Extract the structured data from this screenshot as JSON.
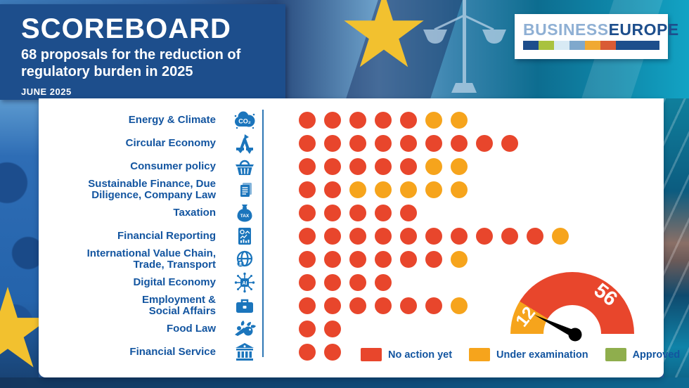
{
  "header": {
    "title": "SCOREBOARD",
    "subtitle": "68 proposals for the reduction of regulatory burden in 2025",
    "date": "JUNE 2025"
  },
  "logo": {
    "part1": "BUSINESS",
    "part2": "EUROPE",
    "bar_colors": [
      "#1d4e8c",
      "#a9c23f",
      "#d8eaf4",
      "#7fa8cc",
      "#f0a932",
      "#d95b35",
      "#1d4e8c"
    ]
  },
  "colors": {
    "no_action": "#e8462c",
    "under_examination": "#f6a41c",
    "approved": "#8fae4d",
    "label_blue": "#1355a0",
    "icon_blue": "#1b75bc",
    "header_blue": "#1d4e8c",
    "divider_blue": "#2e77b5"
  },
  "legend": [
    {
      "label": "No action yet",
      "color": "#e8462c"
    },
    {
      "label": "Under examination",
      "color": "#f6a41c"
    },
    {
      "label": "Approved",
      "color": "#8fae4d"
    }
  ],
  "gauge": {
    "under_examination": "12",
    "no_action": "56",
    "total": 68
  },
  "rows": [
    {
      "label": "Energy & Climate",
      "icon": "co2-cloud",
      "icon_label": "CO₂",
      "no_action": 5,
      "under_examination": 2,
      "approved": 0
    },
    {
      "label": "Circular Economy",
      "icon": "recycle",
      "icon_label": "",
      "no_action": 9,
      "under_examination": 0,
      "approved": 0
    },
    {
      "label": "Consumer policy",
      "icon": "basket",
      "icon_label": "",
      "no_action": 5,
      "under_examination": 2,
      "approved": 0
    },
    {
      "label": "Sustainable Finance, Due\nDiligence, Company Law",
      "icon": "documents",
      "icon_label": "",
      "no_action": 2,
      "under_examination": 5,
      "approved": 0
    },
    {
      "label": "Taxation",
      "icon": "money-bag",
      "icon_label": "TAX",
      "no_action": 5,
      "under_examination": 0,
      "approved": 0
    },
    {
      "label": "Financial Reporting",
      "icon": "report",
      "icon_label": "",
      "no_action": 10,
      "under_examination": 1,
      "approved": 0
    },
    {
      "label": "International Value Chain,\nTrade, Transport",
      "icon": "globe",
      "icon_label": "",
      "no_action": 6,
      "under_examination": 1,
      "approved": 0
    },
    {
      "label": "Digital Economy",
      "icon": "ai-chip",
      "icon_label": "AI",
      "no_action": 4,
      "under_examination": 0,
      "approved": 0
    },
    {
      "label": "Employment &\nSocial Affairs",
      "icon": "briefcase",
      "icon_label": "",
      "no_action": 6,
      "under_examination": 1,
      "approved": 0
    },
    {
      "label": "Food Law",
      "icon": "vegetables",
      "icon_label": "",
      "no_action": 2,
      "under_examination": 0,
      "approved": 0
    },
    {
      "label": "Financial Service",
      "icon": "bank",
      "icon_label": "",
      "no_action": 2,
      "under_examination": 0,
      "approved": 0
    }
  ],
  "chart_data": {
    "type": "bar",
    "stacked": true,
    "title": "SCOREBOARD — 68 proposals for the reduction of regulatory burden in 2025 (June 2025)",
    "categories": [
      "Energy & Climate",
      "Circular Economy",
      "Consumer policy",
      "Sustainable Finance, Due Diligence, Company Law",
      "Taxation",
      "Financial Reporting",
      "International Value Chain, Trade, Transport",
      "Digital Economy",
      "Employment & Social Affairs",
      "Food Law",
      "Financial Service"
    ],
    "series": [
      {
        "name": "No action yet",
        "color": "#e8462c",
        "values": [
          5,
          9,
          5,
          2,
          5,
          10,
          6,
          4,
          6,
          2,
          2
        ]
      },
      {
        "name": "Under examination",
        "color": "#f6a41c",
        "values": [
          2,
          0,
          2,
          5,
          0,
          1,
          1,
          0,
          1,
          0,
          0
        ]
      },
      {
        "name": "Approved",
        "color": "#8fae4d",
        "values": [
          0,
          0,
          0,
          0,
          0,
          0,
          0,
          0,
          0,
          0,
          0
        ]
      }
    ],
    "gauge": {
      "no_action": 56,
      "under_examination": 12,
      "total": 68
    },
    "legend_position": "bottom",
    "unit": "proposals (1 dot = 1 proposal)"
  }
}
